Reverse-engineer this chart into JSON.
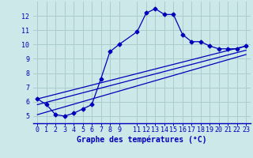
{
  "xlabel": "Graphe des températures (°C)",
  "bg_color": "#cce8e8",
  "line_color": "#0000bb",
  "grid_color": "#aacccc",
  "xlim": [
    -0.5,
    23.5
  ],
  "ylim": [
    4.5,
    13.0
  ],
  "xticks": [
    0,
    1,
    2,
    3,
    4,
    5,
    6,
    7,
    8,
    9,
    11,
    12,
    13,
    14,
    15,
    16,
    17,
    18,
    19,
    20,
    21,
    22,
    23
  ],
  "yticks": [
    5,
    6,
    7,
    8,
    9,
    10,
    11,
    12
  ],
  "line1_x": [
    0,
    1,
    2,
    3,
    4,
    5,
    6,
    7,
    8,
    9,
    11,
    12,
    13,
    14,
    15,
    16,
    17,
    18,
    19,
    20,
    21,
    22,
    23
  ],
  "line1_y": [
    6.2,
    5.8,
    5.1,
    5.0,
    5.2,
    5.5,
    5.8,
    7.6,
    9.5,
    10.0,
    10.9,
    12.2,
    12.5,
    12.1,
    12.1,
    10.7,
    10.2,
    10.2,
    9.9,
    9.7,
    9.7,
    9.7,
    9.9
  ],
  "line2_x": [
    0,
    23
  ],
  "line2_y": [
    6.2,
    9.9
  ],
  "line3_x": [
    0,
    23
  ],
  "line3_y": [
    5.8,
    9.6
  ],
  "line4_x": [
    0,
    23
  ],
  "line4_y": [
    5.1,
    9.3
  ],
  "xlabel_fontsize": 7,
  "tick_fontsize": 6,
  "linewidth": 0.9,
  "markersize": 2.5
}
